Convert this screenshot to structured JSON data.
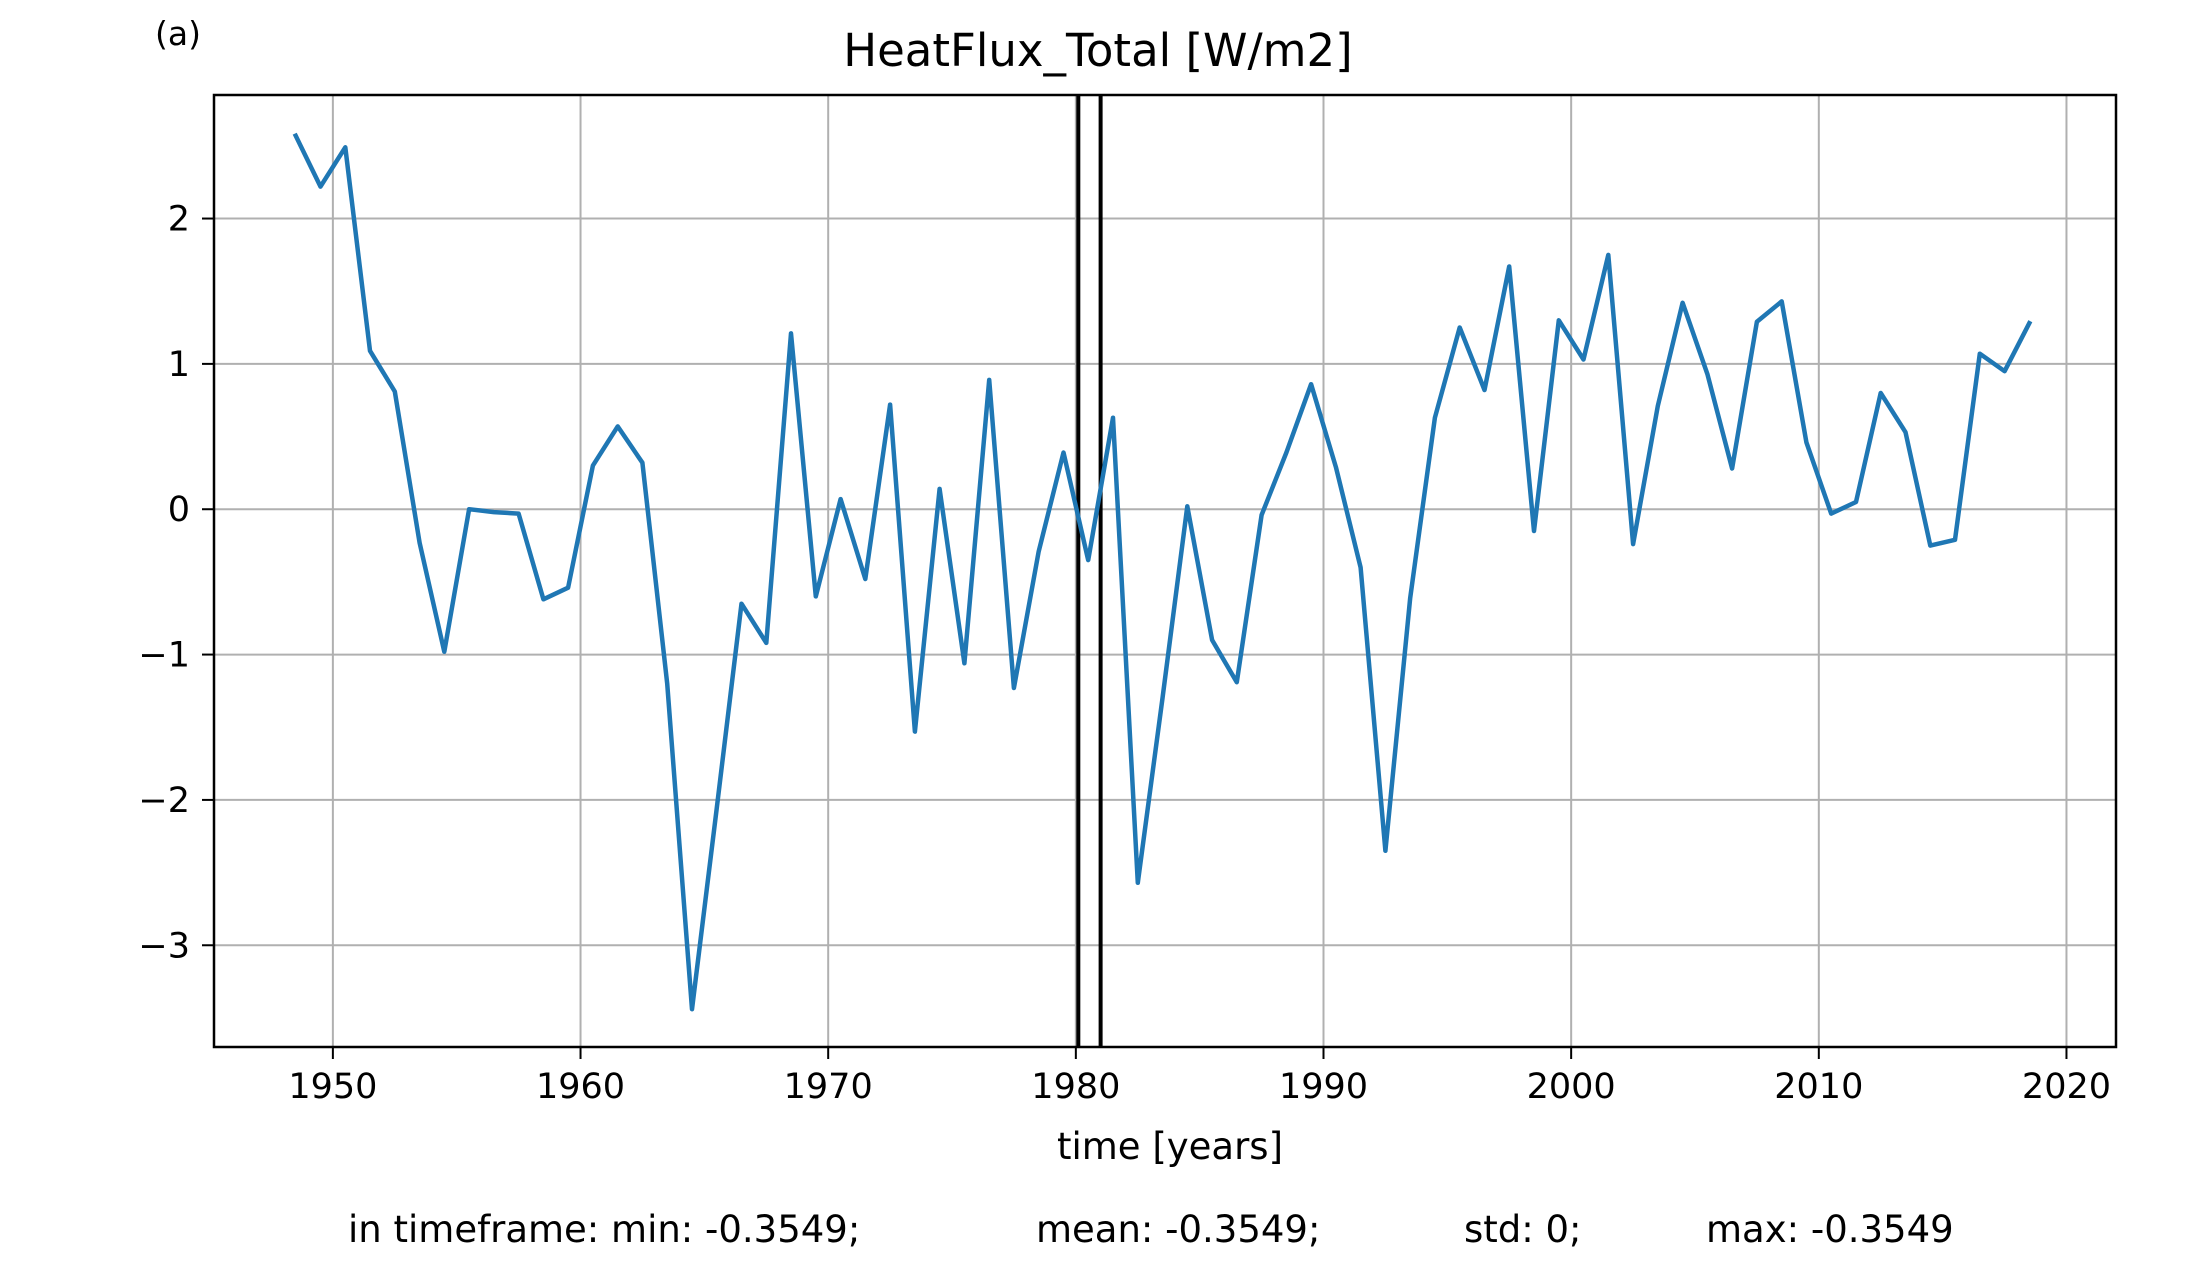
{
  "panel_label": "(a)",
  "stats": {
    "min": "in timeframe: min: -0.3549;",
    "mean": "mean: -0.3549;",
    "std": "std: 0;",
    "max": "max: -0.3549"
  },
  "colors": {
    "series": "#1f77b4",
    "grid": "#b0b0b0",
    "marker": "#000000"
  },
  "chart_data": {
    "type": "line",
    "title": "HeatFlux_Total [W/m2]",
    "xlabel": "time [years]",
    "ylabel": "",
    "xlim": [
      1945.2,
      2022.0
    ],
    "ylim": [
      -3.7,
      2.85
    ],
    "xticks": [
      1950,
      1960,
      1970,
      1980,
      1990,
      2000,
      2010,
      2020
    ],
    "yticks": [
      -3,
      -2,
      -1,
      0,
      1,
      2
    ],
    "grid": true,
    "vertical_lines": [
      1980.1,
      1981.0
    ],
    "series": [
      {
        "x": [
          1948.5,
          1949.5,
          1950.5,
          1951.5,
          1952.5,
          1953.5,
          1954.5,
          1955.5,
          1956.5,
          1957.5,
          1958.5,
          1959.5,
          1960.5,
          1961.5,
          1962.5,
          1963.5,
          1964.5,
          1965.5,
          1966.5,
          1967.5,
          1968.5,
          1969.5,
          1970.5,
          1971.5,
          1972.5,
          1973.5,
          1974.5,
          1975.5,
          1976.5,
          1977.5,
          1978.5,
          1979.5,
          1980.5,
          1981.5,
          1982.5,
          1983.5,
          1984.5,
          1985.5,
          1986.5,
          1987.5,
          1988.5,
          1989.5,
          1990.5,
          1991.5,
          1992.5,
          1993.5,
          1994.5,
          1995.5,
          1996.5,
          1997.5,
          1998.5,
          1999.5,
          2000.5,
          2001.5,
          2002.5,
          2003.5,
          2004.5,
          2005.5,
          2006.5,
          2007.5,
          2008.5,
          2009.5,
          2010.5,
          2011.5,
          2012.5,
          2013.5,
          2014.5,
          2015.5,
          2016.5,
          2017.5,
          2018.5
        ],
        "y": [
          2.57,
          2.22,
          2.49,
          1.09,
          0.81,
          -0.23,
          -0.98,
          0.0,
          -0.02,
          -0.03,
          -0.62,
          -0.54,
          0.3,
          0.57,
          0.32,
          -1.2,
          -3.44,
          -2.06,
          -0.65,
          -0.92,
          1.21,
          -0.6,
          0.07,
          -0.48,
          0.72,
          -1.53,
          0.14,
          -1.06,
          0.89,
          -1.23,
          -0.29,
          0.39,
          -0.35,
          0.63,
          -2.57,
          -1.3,
          0.02,
          -0.9,
          -1.19,
          -0.04,
          0.39,
          0.86,
          0.29,
          -0.4,
          -2.35,
          -0.61,
          0.63,
          1.25,
          0.82,
          1.67,
          -0.15,
          1.3,
          1.03,
          1.75,
          -0.24,
          0.71,
          1.42,
          0.93,
          0.28,
          1.29,
          1.43,
          0.46,
          -0.03,
          0.05,
          0.8,
          0.53,
          -0.25,
          -0.21,
          1.07,
          0.95,
          1.28
        ]
      }
    ]
  }
}
